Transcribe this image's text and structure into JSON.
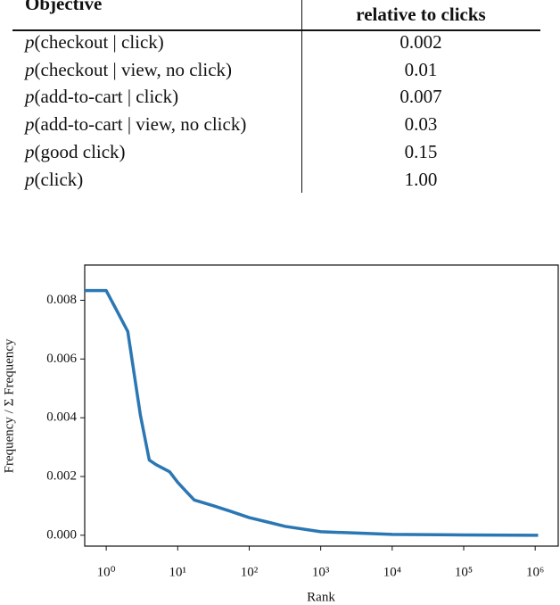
{
  "table": {
    "header": [
      "Objective",
      "relative to clicks"
    ],
    "rows": [
      [
        "p(checkout | click)",
        "0.002"
      ],
      [
        "p(checkout | view, no click)",
        "0.01"
      ],
      [
        "p(add-to-cart | click)",
        "0.007"
      ],
      [
        "p(add-to-cart | view, no click)",
        "0.03"
      ],
      [
        "p(good click)",
        "0.15"
      ],
      [
        "p(click)",
        "1.00"
      ]
    ]
  },
  "chart_data": {
    "type": "line",
    "x_label": "Rank",
    "y_label": "Frequency / Σ Frequency",
    "xscale": "log",
    "xlim": [
      0.5,
      2100000
    ],
    "ylim": [
      -0.00037,
      0.0092
    ],
    "xticks": [
      {
        "value": 1,
        "label": "10⁰"
      },
      {
        "value": 10,
        "label": "10¹"
      },
      {
        "value": 100,
        "label": "10²"
      },
      {
        "value": 1000,
        "label": "10³"
      },
      {
        "value": 10000,
        "label": "10⁴"
      },
      {
        "value": 100000,
        "label": "10⁵"
      },
      {
        "value": 1000000,
        "label": "10⁶"
      }
    ],
    "yticks": [
      {
        "value": 0,
        "label": "0.000"
      },
      {
        "value": 0.002,
        "label": "0.002"
      },
      {
        "value": 0.004,
        "label": "0.004"
      },
      {
        "value": 0.006,
        "label": "0.006"
      },
      {
        "value": 0.008,
        "label": "0.008"
      }
    ],
    "series": [
      {
        "color": "#2b77b3",
        "x": [
          0.5,
          1,
          2,
          3,
          4,
          5,
          7.7,
          10,
          13,
          17,
          32,
          54,
          100,
          180,
          320,
          1000,
          10000,
          100000,
          1100000
        ],
        "values": [
          0.00833,
          0.00833,
          0.00694,
          0.0041,
          0.00256,
          0.0024,
          0.00216,
          0.0018,
          0.0015,
          0.0012,
          0.001,
          0.00082,
          0.0006,
          0.00045,
          0.0003,
          0.00012,
          3e-05,
          1e-05,
          0
        ]
      }
    ]
  }
}
